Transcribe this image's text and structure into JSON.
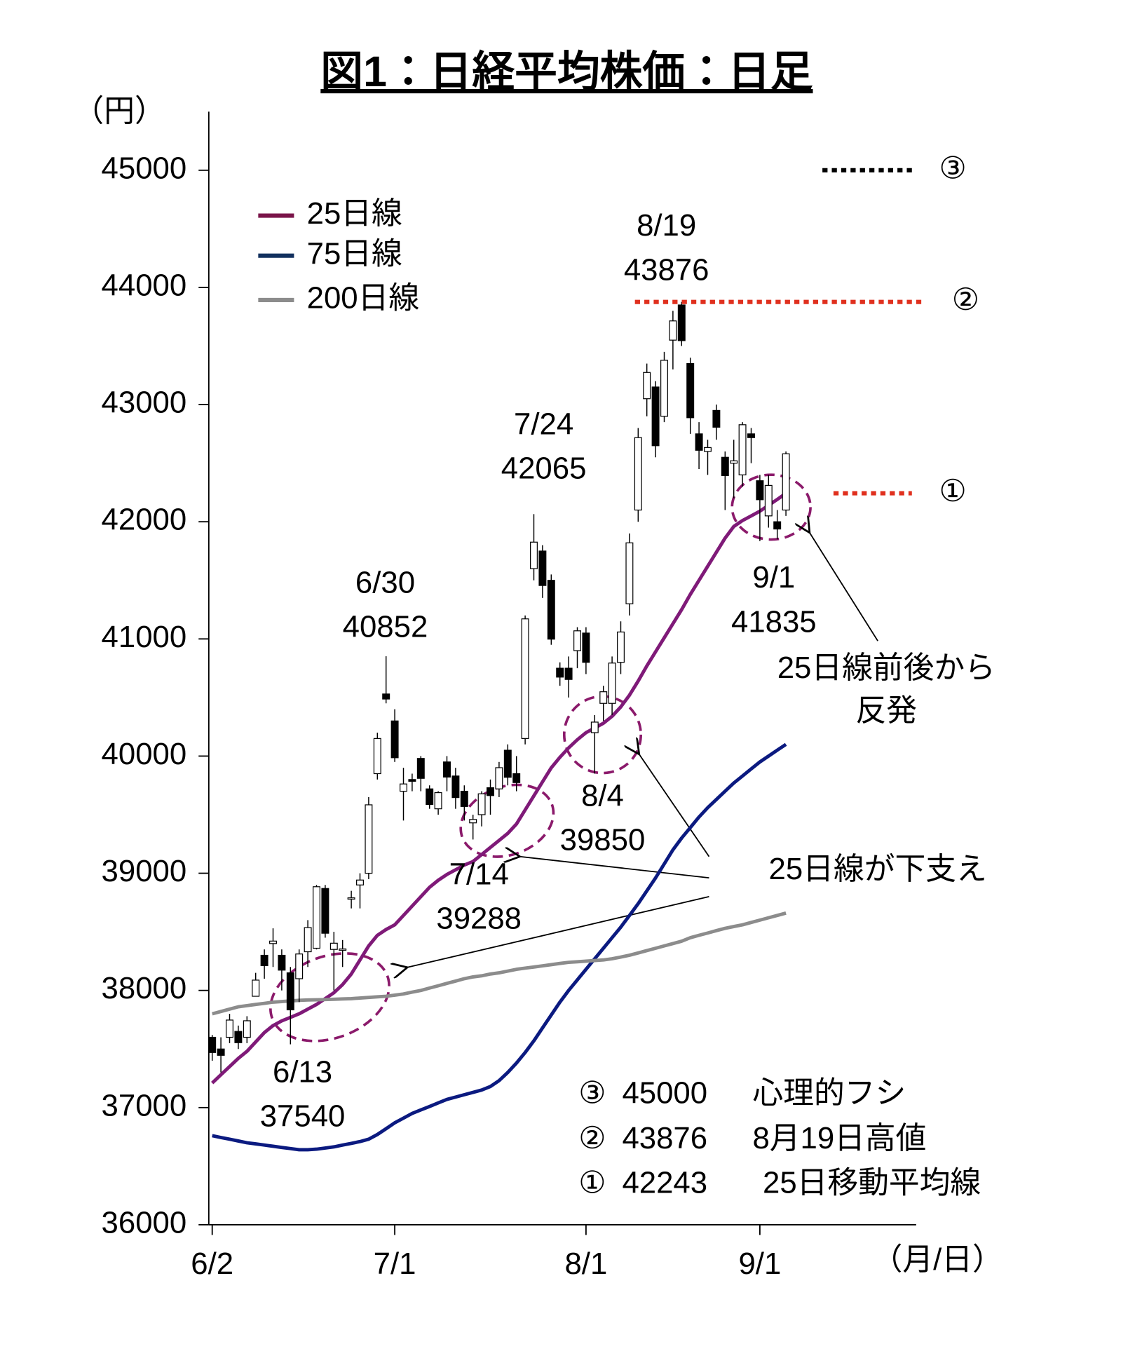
{
  "chart_data": {
    "type": "candlestick",
    "title": "図1：日経平均株価：日足",
    "y_unit": "（円）",
    "x_unit": "（月/日）",
    "categories": [
      "6/2",
      null,
      null,
      null,
      null,
      null,
      null,
      null,
      null,
      null,
      null,
      null,
      null,
      null,
      null,
      null,
      null,
      null,
      null,
      null,
      null,
      "7/1",
      null,
      null,
      null,
      null,
      null,
      null,
      null,
      null,
      null,
      null,
      null,
      null,
      null,
      null,
      null,
      null,
      null,
      null,
      null,
      null,
      null,
      "8/1",
      null,
      null,
      null,
      null,
      null,
      null,
      null,
      null,
      null,
      null,
      null,
      null,
      null,
      null,
      null,
      null,
      null,
      null,
      null,
      "9/1",
      null,
      null,
      null
    ],
    "candles": {
      "up_color": "#ffffff",
      "down_color": "#000000",
      "open": [
        37600,
        37500,
        37600,
        37650,
        37600,
        37950,
        38300,
        38400,
        38300,
        38150,
        38100,
        38330,
        38360,
        38870,
        38350,
        38350,
        38780,
        38900,
        39000,
        39850,
        40530,
        40300,
        39700,
        39800,
        39980,
        39720,
        39550,
        39950,
        39830,
        39700,
        39430,
        39500,
        39730,
        39720,
        40050,
        39850,
        40150,
        41600,
        41750,
        41500,
        40750,
        40750,
        40900,
        41050,
        40200,
        40450,
        40450,
        40800,
        41300,
        42100,
        43050,
        43150,
        42900,
        43550,
        43850,
        43350,
        42750,
        42600,
        42950,
        42550,
        42500,
        42400,
        42750,
        42350,
        42050,
        42000,
        42100
      ],
      "high": [
        37620,
        37600,
        37800,
        37700,
        37780,
        38150,
        38350,
        38530,
        38350,
        38200,
        38350,
        38600,
        38900,
        38900,
        38500,
        38430,
        38850,
        39000,
        39650,
        40200,
        40852,
        40400,
        39900,
        39850,
        40000,
        39750,
        39700,
        40000,
        39900,
        39750,
        39500,
        39700,
        39800,
        39950,
        40100,
        40000,
        41200,
        42065,
        41800,
        41550,
        40800,
        40850,
        41100,
        41100,
        40350,
        40600,
        40850,
        41150,
        41900,
        42800,
        43350,
        43200,
        43450,
        43800,
        43876,
        43400,
        42850,
        42700,
        43000,
        42600,
        42700,
        42850,
        42800,
        42400,
        42400,
        42100,
        42600
      ],
      "low": [
        37400,
        37300,
        37550,
        37500,
        37550,
        37950,
        38100,
        38200,
        38000,
        37540,
        37900,
        38200,
        38350,
        38450,
        38000,
        38200,
        38700,
        38700,
        38950,
        39800,
        40450,
        39950,
        39450,
        39700,
        39700,
        39550,
        39500,
        39700,
        39550,
        39450,
        39288,
        39400,
        39500,
        39650,
        39750,
        39700,
        40100,
        41500,
        41350,
        40950,
        40600,
        40500,
        40750,
        40700,
        39850,
        40300,
        40350,
        40700,
        41200,
        42000,
        42900,
        42550,
        42850,
        43300,
        43500,
        42750,
        42450,
        42400,
        42700,
        42100,
        42200,
        42300,
        42500,
        41835,
        41950,
        41850,
        42050
      ],
      "close": [
        37470,
        37446,
        37747,
        37554,
        37741,
        38088,
        38211,
        38421,
        38173,
        37834,
        38311,
        38536,
        38885,
        38488,
        38403,
        38354,
        38790,
        38942,
        39584,
        40150,
        40487,
        39986,
        39762,
        39785,
        39810,
        39587,
        39688,
        39821,
        39646,
        39570,
        39459,
        39678,
        39663,
        39901,
        39819,
        39774,
        41171,
        41826,
        41456,
        40998,
        40674,
        40654,
        41069,
        40800,
        40290,
        40549,
        40794,
        41059,
        41820,
        42718,
        43274,
        42649,
        43378,
        43714,
        43546,
        42888,
        42610,
        42633,
        42807,
        42394,
        42520,
        42828,
        42718,
        42188,
        42310,
        41938,
        42580
      ]
    },
    "series": [
      {
        "name": "25日線",
        "color": "#7f1a78",
        "legend_color": "#7a1449",
        "values": [
          37210,
          37280,
          37350,
          37420,
          37480,
          37560,
          37640,
          37700,
          37740,
          37770,
          37800,
          37840,
          37880,
          37930,
          37980,
          38050,
          38140,
          38260,
          38380,
          38470,
          38520,
          38560,
          38640,
          38720,
          38800,
          38880,
          38940,
          38990,
          39030,
          39070,
          39100,
          39160,
          39220,
          39280,
          39340,
          39420,
          39540,
          39660,
          39780,
          39900,
          39990,
          40070,
          40140,
          40200,
          40240,
          40280,
          40340,
          40420,
          40520,
          40640,
          40770,
          40890,
          41010,
          41130,
          41250,
          41380,
          41500,
          41620,
          41740,
          41860,
          41960,
          42010,
          42050,
          42090,
          42140,
          42190,
          42243
        ]
      },
      {
        "name": "75日線",
        "color": "#0b1a80",
        "legend_color": "#12305e",
        "values": [
          36760,
          36745,
          36730,
          36715,
          36700,
          36690,
          36680,
          36670,
          36660,
          36650,
          36640,
          36640,
          36645,
          36655,
          36665,
          36680,
          36695,
          36710,
          36730,
          36770,
          36820,
          36870,
          36910,
          36950,
          36980,
          37010,
          37040,
          37070,
          37090,
          37110,
          37130,
          37150,
          37180,
          37230,
          37300,
          37380,
          37470,
          37570,
          37680,
          37790,
          37900,
          38000,
          38090,
          38180,
          38270,
          38360,
          38450,
          38540,
          38640,
          38740,
          38850,
          38960,
          39080,
          39200,
          39300,
          39390,
          39480,
          39560,
          39630,
          39700,
          39770,
          39830,
          39890,
          39950,
          40000,
          40050,
          40100
        ]
      },
      {
        "name": "200日線",
        "color": "#8c8c8c",
        "legend_color": "#8c8c8c",
        "values": [
          37800,
          37820,
          37840,
          37860,
          37870,
          37880,
          37890,
          37900,
          37905,
          37910,
          37915,
          37918,
          37920,
          37922,
          37925,
          37928,
          37930,
          37935,
          37940,
          37945,
          37950,
          37960,
          37970,
          37985,
          38000,
          38020,
          38040,
          38060,
          38080,
          38100,
          38115,
          38125,
          38140,
          38150,
          38165,
          38180,
          38190,
          38200,
          38210,
          38220,
          38230,
          38240,
          38245,
          38250,
          38255,
          38260,
          38270,
          38285,
          38300,
          38320,
          38340,
          38360,
          38380,
          38400,
          38420,
          38450,
          38470,
          38490,
          38510,
          38530,
          38545,
          38560,
          38580,
          38600,
          38620,
          38640,
          38660
        ]
      }
    ],
    "ylim": [
      36000,
      45500
    ],
    "yticks": [
      36000,
      37000,
      38000,
      39000,
      40000,
      41000,
      42000,
      43000,
      44000,
      45000
    ],
    "annotations": [
      {
        "date": "6/30",
        "value": 40852
      },
      {
        "date": "7/24",
        "value": 42065
      },
      {
        "date": "8/19",
        "value": 43876
      },
      {
        "date": "6/13",
        "value": 37540
      },
      {
        "date": "7/14",
        "value": 39288
      },
      {
        "date": "8/4",
        "value": 39850
      },
      {
        "date": "9/1",
        "value": 41835
      }
    ],
    "reference_lines": [
      {
        "marker": "③",
        "value": 45000,
        "note": "心理的フシ",
        "color": "#000000"
      },
      {
        "marker": "②",
        "value": 43876,
        "note": "8月19日高値",
        "color": "#e0301e"
      },
      {
        "marker": "①",
        "value": 42243,
        "note": "25日移動平均線",
        "color": "#e0301e"
      }
    ],
    "callouts": [
      [
        "25日線前後から",
        "反発"
      ],
      [
        "25日線が下支え"
      ]
    ],
    "callout_color": "#8b1a6b"
  }
}
